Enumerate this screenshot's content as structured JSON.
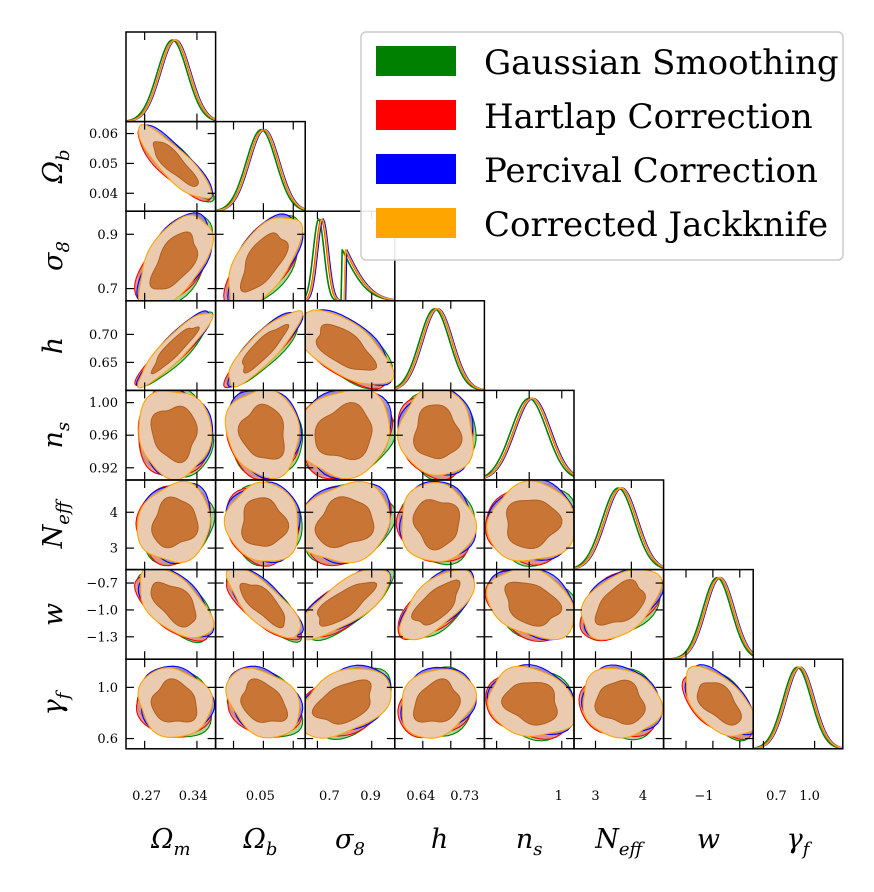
{
  "chart_data": {
    "type": "corner",
    "title": "",
    "parameters": [
      {
        "key": "omega_m",
        "label": "Ω",
        "sub": "m",
        "range": [
          0.245,
          0.365
        ],
        "ticks": [
          0.27,
          0.34
        ],
        "tick_labels": [
          "0.27",
          "0.34"
        ],
        "mean": 0.31,
        "sigma": 0.02
      },
      {
        "key": "omega_b",
        "label": "Ω",
        "sub": "b",
        "range": [
          0.034,
          0.064
        ],
        "ticks": [
          0.04,
          0.05,
          0.06
        ],
        "tick_labels": [
          "0.04",
          "0.05",
          "0.06"
        ],
        "mean": 0.05,
        "sigma": 0.005
      },
      {
        "key": "sigma_8",
        "label": "σ",
        "sub": "8",
        "range": [
          0.655,
          0.985
        ],
        "ticks": [
          0.7,
          0.9
        ],
        "tick_labels": [
          "0.7",
          "0.9"
        ],
        "mean": 0.8,
        "sigma": 0.07
      },
      {
        "key": "h",
        "label": "h",
        "sub": "",
        "range": [
          0.6,
          0.76
        ],
        "ticks": [
          0.65,
          0.7
        ],
        "tick_labels": [
          "0.65",
          "0.70"
        ],
        "mean": 0.675,
        "sigma": 0.027
      },
      {
        "key": "n_s",
        "label": "n",
        "sub": "s",
        "range": [
          0.905,
          1.015
        ],
        "ticks": [
          0.92,
          0.96,
          1.0
        ],
        "tick_labels": [
          "0.92",
          "0.96",
          "1.00"
        ],
        "mean": 0.963,
        "sigma": 0.022
      },
      {
        "key": "N_eff",
        "label": "N",
        "sub": "eff",
        "range": [
          2.4,
          4.9
        ],
        "ticks": [
          3,
          4
        ],
        "tick_labels": [
          "3",
          "4"
        ],
        "mean": 3.7,
        "sigma": 0.45
      },
      {
        "key": "w",
        "label": "w",
        "sub": "",
        "range": [
          -1.55,
          -0.55
        ],
        "ticks": [
          -1.3,
          -1.0,
          -0.7
        ],
        "tick_labels": [
          "−1.3",
          "−1.0",
          "−0.7"
        ],
        "mean": -0.93,
        "sigma": 0.16
      },
      {
        "key": "gamma_f",
        "label": "γ",
        "sub": "f",
        "range": [
          0.52,
          1.22
        ],
        "ticks": [
          0.6,
          1.0
        ],
        "tick_labels": [
          "0.6",
          "1.0"
        ],
        "mean": 0.88,
        "sigma": 0.11
      }
    ],
    "bottom_tick_labels": [
      [
        "0.27",
        "0.34"
      ],
      [
        "0.05"
      ],
      [
        "0.7",
        "0.9"
      ],
      [
        "0.64",
        "0.73"
      ],
      [
        "1"
      ],
      [
        "3",
        "4"
      ],
      [
        "−1"
      ],
      [
        "0.7",
        "1.0"
      ]
    ],
    "left_tick_labels": [
      [],
      [
        "0.04",
        "0.05",
        "0.06"
      ],
      [
        "0.7",
        "0.9"
      ],
      [
        "0.65",
        "0.70"
      ],
      [
        "0.92",
        "0.96",
        "1.00"
      ],
      [
        "3",
        "4"
      ],
      [
        "−1.3",
        "−1.0",
        "−0.7"
      ],
      [
        "0.6",
        "1.0"
      ]
    ],
    "series": [
      {
        "name": "Gaussian Smoothing",
        "color": "#008000"
      },
      {
        "name": "Hartlap Correction",
        "color": "#ff0000"
      },
      {
        "name": "Percival Correction",
        "color": "#0000ff"
      },
      {
        "name": "Corrected Jackknife",
        "color": "#ffa500"
      }
    ],
    "contour_levels": [
      "68%",
      "95%"
    ],
    "legend_position": "top-right"
  }
}
